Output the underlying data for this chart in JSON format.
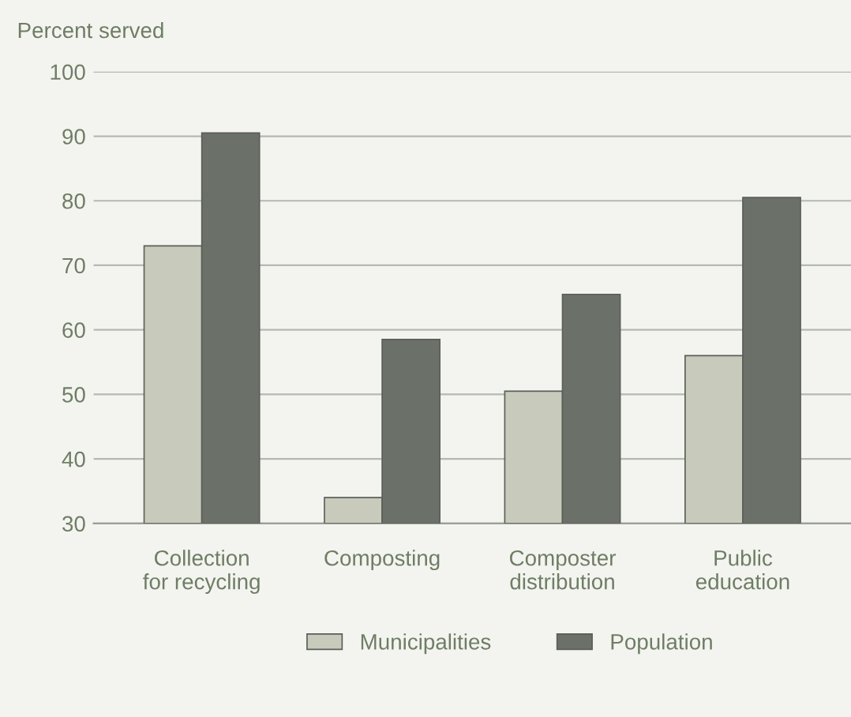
{
  "chart_data": {
    "type": "bar",
    "ylabel": "Percent served",
    "categories": [
      "Collection\nfor recycling",
      "Composting",
      "Composter\ndistribution",
      "Public\neducation"
    ],
    "series": [
      {
        "name": "Municipalities",
        "color": "#c8cbbc",
        "values": [
          73,
          34,
          50.5,
          56
        ]
      },
      {
        "name": "Population",
        "color": "#6b7068",
        "values": [
          90.5,
          58.5,
          65.5,
          80.5
        ]
      }
    ],
    "ylim": [
      30,
      100
    ],
    "yticks": [
      30,
      40,
      50,
      60,
      70,
      80,
      90,
      100
    ],
    "grid": "y",
    "legend": "bottom"
  }
}
